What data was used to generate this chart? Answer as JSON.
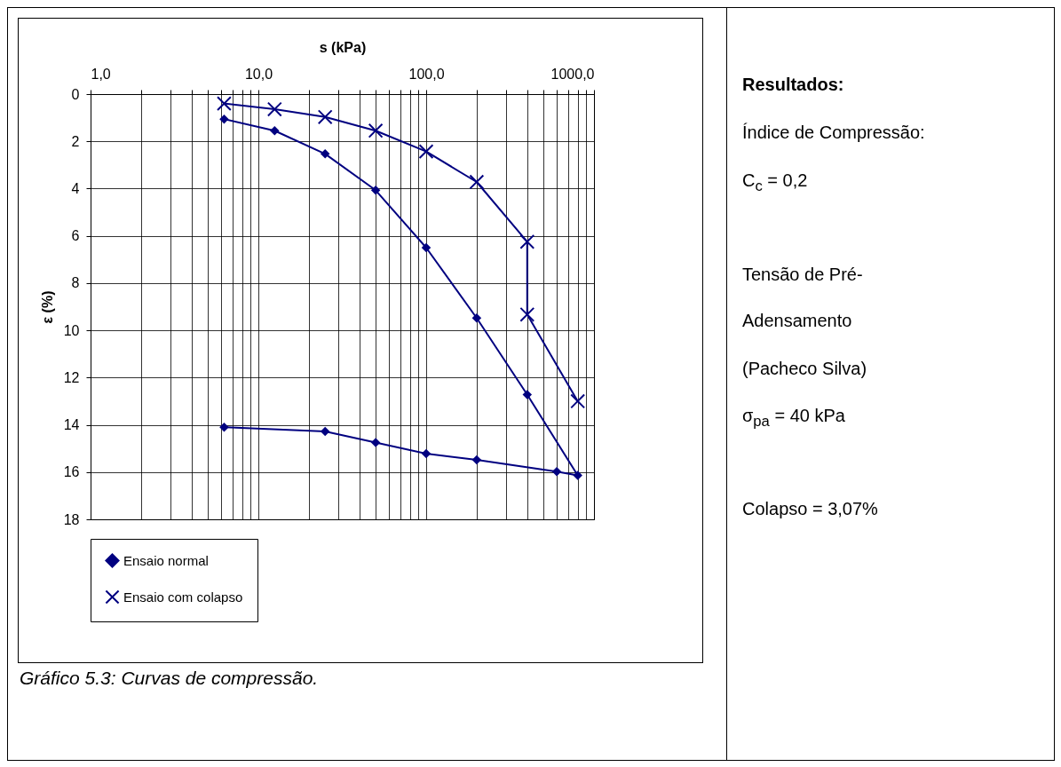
{
  "chart_data": {
    "type": "line",
    "xlabel": "s (kPa)",
    "ylabel": "ε (%)",
    "log": "x",
    "grid": true,
    "legend": "bottom",
    "xlim": [
      1,
      1000
    ],
    "ylim": [
      18,
      0
    ],
    "xticks": [
      {
        "value": 1,
        "label": "1,0"
      },
      {
        "value": 2,
        "label": null
      },
      {
        "value": 3,
        "label": null
      },
      {
        "value": 4,
        "label": null
      },
      {
        "value": 5,
        "label": null
      },
      {
        "value": 6,
        "label": null
      },
      {
        "value": 7,
        "label": null
      },
      {
        "value": 8,
        "label": null
      },
      {
        "value": 9,
        "label": null
      },
      {
        "value": 10,
        "label": "10,0"
      },
      {
        "value": 20,
        "label": null
      },
      {
        "value": 30,
        "label": null
      },
      {
        "value": 40,
        "label": null
      },
      {
        "value": 50,
        "label": null
      },
      {
        "value": 60,
        "label": null
      },
      {
        "value": 70,
        "label": null
      },
      {
        "value": 80,
        "label": null
      },
      {
        "value": 90,
        "label": null
      },
      {
        "value": 100,
        "label": "100,0"
      },
      {
        "value": 200,
        "label": null
      },
      {
        "value": 300,
        "label": null
      },
      {
        "value": 400,
        "label": null
      },
      {
        "value": 500,
        "label": null
      },
      {
        "value": 600,
        "label": null
      },
      {
        "value": 700,
        "label": null
      },
      {
        "value": 800,
        "label": null
      },
      {
        "value": 900,
        "label": null
      },
      {
        "value": 1000,
        "label": "1000,0"
      }
    ],
    "yticks": [
      0,
      2,
      4,
      6,
      8,
      10,
      12,
      14,
      16,
      18
    ],
    "series": [
      {
        "name": "Ensaio normal",
        "color": "#000080",
        "marker": "diamond",
        "x": [
          6.25,
          12.5,
          25,
          50,
          100,
          200,
          400,
          800,
          600,
          200,
          100,
          50,
          25,
          6.25
        ],
        "values": [
          1.06,
          1.55,
          2.53,
          4.07,
          6.5,
          9.48,
          12.72,
          16.14,
          15.98,
          15.48,
          15.22,
          14.75,
          14.28,
          14.1
        ]
      },
      {
        "name": "Ensaio com colapso",
        "color": "#000080",
        "marker": "cross",
        "x": [
          6.25,
          12.5,
          25,
          50,
          100,
          200,
          400,
          400,
          800
        ],
        "values": [
          0.4,
          0.64,
          0.97,
          1.55,
          2.43,
          3.72,
          6.25,
          9.33,
          13.0
        ]
      }
    ],
    "annotations": [
      "Resultados:",
      "Índice de Compressão:",
      "C$_{c}$ = 0,2",
      "Tensão de Pré-",
      "Adensamento",
      "(Pacheco Silva)",
      "σ$_{pa}$ = 40 kPa",
      "Colapso = 3,07%",
      "Gráfico 5.3: Curvas de compressão."
    ]
  }
}
